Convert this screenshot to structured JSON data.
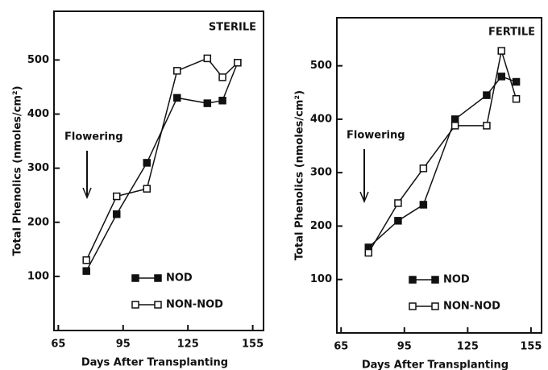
{
  "chart_data": [
    {
      "type": "line",
      "title": "STERILE",
      "annotation": "Flowering",
      "xlabel": "Days After Transplanting",
      "ylabel": "Total Phenolics (nmoles/cm²)",
      "x": [
        78,
        92,
        106,
        120,
        134,
        141,
        148
      ],
      "series": [
        {
          "name": "NOD",
          "color": "#111111",
          "filled": true,
          "values": [
            110,
            215,
            310,
            430,
            420,
            425,
            495
          ]
        },
        {
          "name": "NON-NOD",
          "color": "#111111",
          "filled": false,
          "values": [
            130,
            248,
            262,
            480,
            503,
            468,
            495
          ]
        }
      ],
      "xlim": [
        63,
        160
      ],
      "xticks": [
        65,
        95,
        125,
        155
      ],
      "ylim": [
        0,
        590
      ],
      "yticks": [
        100,
        200,
        300,
        400,
        500
      ]
    },
    {
      "type": "line",
      "title": "FERTILE",
      "annotation": "Flowering",
      "xlabel": "Days After Transplanting",
      "ylabel": "Total Phenolics (nmoles/cm²)",
      "x": [
        78,
        92,
        104,
        119,
        134,
        141,
        148
      ],
      "series": [
        {
          "name": "NOD",
          "color": "#111111",
          "filled": true,
          "values": [
            160,
            210,
            240,
            400,
            445,
            480,
            470
          ]
        },
        {
          "name": "NON-NOD",
          "color": "#111111",
          "filled": false,
          "values": [
            150,
            243,
            308,
            388,
            388,
            528,
            438
          ]
        }
      ],
      "xlim": [
        63,
        160
      ],
      "xticks": [
        65,
        95,
        125,
        155
      ],
      "ylim": [
        0,
        590
      ],
      "yticks": [
        100,
        200,
        300,
        400,
        500
      ]
    }
  ]
}
